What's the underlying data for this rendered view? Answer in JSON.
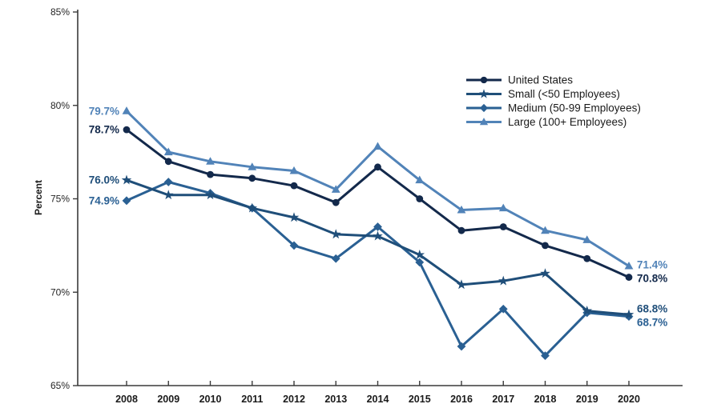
{
  "chart_data": {
    "type": "line",
    "title": "",
    "ylabel": "Percent",
    "x": [
      2008,
      2009,
      2010,
      2011,
      2012,
      2013,
      2014,
      2015,
      2016,
      2017,
      2018,
      2019,
      2020
    ],
    "ylim": [
      65,
      85
    ],
    "yticks": [
      65,
      70,
      75,
      80,
      85
    ],
    "ytick_suffix": "%",
    "grid": false,
    "legend_position": "upper right",
    "axis_color": "#3a3a3a",
    "tick_label_color": "#262626",
    "series": [
      {
        "name": "United States",
        "marker": "circle",
        "color": "#13294b",
        "values": [
          78.7,
          77.0,
          76.3,
          76.1,
          75.7,
          74.8,
          76.7,
          75.0,
          73.3,
          73.5,
          72.5,
          71.8,
          70.8
        ],
        "start_label": "78.7%",
        "end_label": "70.8%"
      },
      {
        "name": "Small (<50 Employees)",
        "marker": "star",
        "color": "#1f4e79",
        "values": [
          76.0,
          75.2,
          75.2,
          74.5,
          74.0,
          73.1,
          73.0,
          72.0,
          70.4,
          70.6,
          71.0,
          69.0,
          68.8
        ],
        "start_label": "76.0%",
        "end_label": "68.8%"
      },
      {
        "name": "Medium (50-99 Employees)",
        "marker": "diamond",
        "color": "#2a6093",
        "values": [
          74.9,
          75.9,
          75.3,
          74.5,
          72.5,
          71.8,
          73.5,
          71.6,
          67.1,
          69.1,
          66.6,
          68.9,
          68.7
        ],
        "start_label": "74.9%",
        "end_label": "68.7%"
      },
      {
        "name": "Large (100+ Employees)",
        "marker": "triangle",
        "color": "#5183b8",
        "values": [
          79.7,
          77.5,
          77.0,
          76.7,
          76.5,
          75.5,
          77.8,
          76.0,
          74.4,
          74.5,
          73.3,
          72.8,
          71.4
        ],
        "start_label": "79.7%",
        "end_label": "71.4%"
      }
    ]
  }
}
